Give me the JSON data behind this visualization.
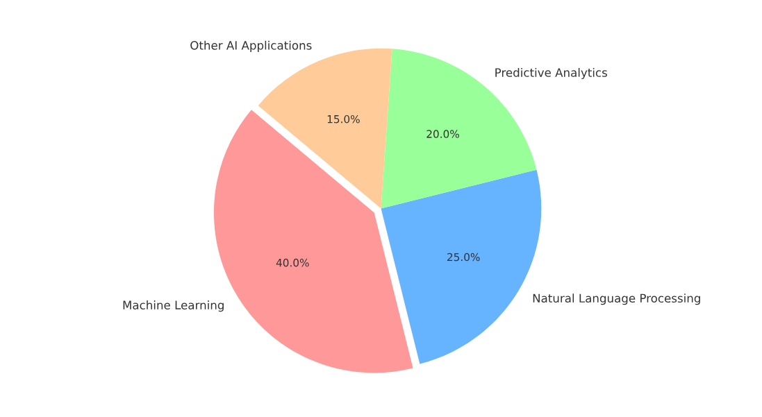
{
  "chart_data": {
    "type": "pie",
    "categories": [
      "Machine Learning",
      "Natural Language Processing",
      "Predictive Analytics",
      "Other AI Applications"
    ],
    "values": [
      40,
      25,
      20,
      15
    ],
    "colors": [
      "#ff9999",
      "#66b3ff",
      "#99ff99",
      "#ffcc99"
    ],
    "value_labels": [
      "40.0%",
      "25.0%",
      "20.0%",
      "15.0%"
    ],
    "legend": false
  }
}
